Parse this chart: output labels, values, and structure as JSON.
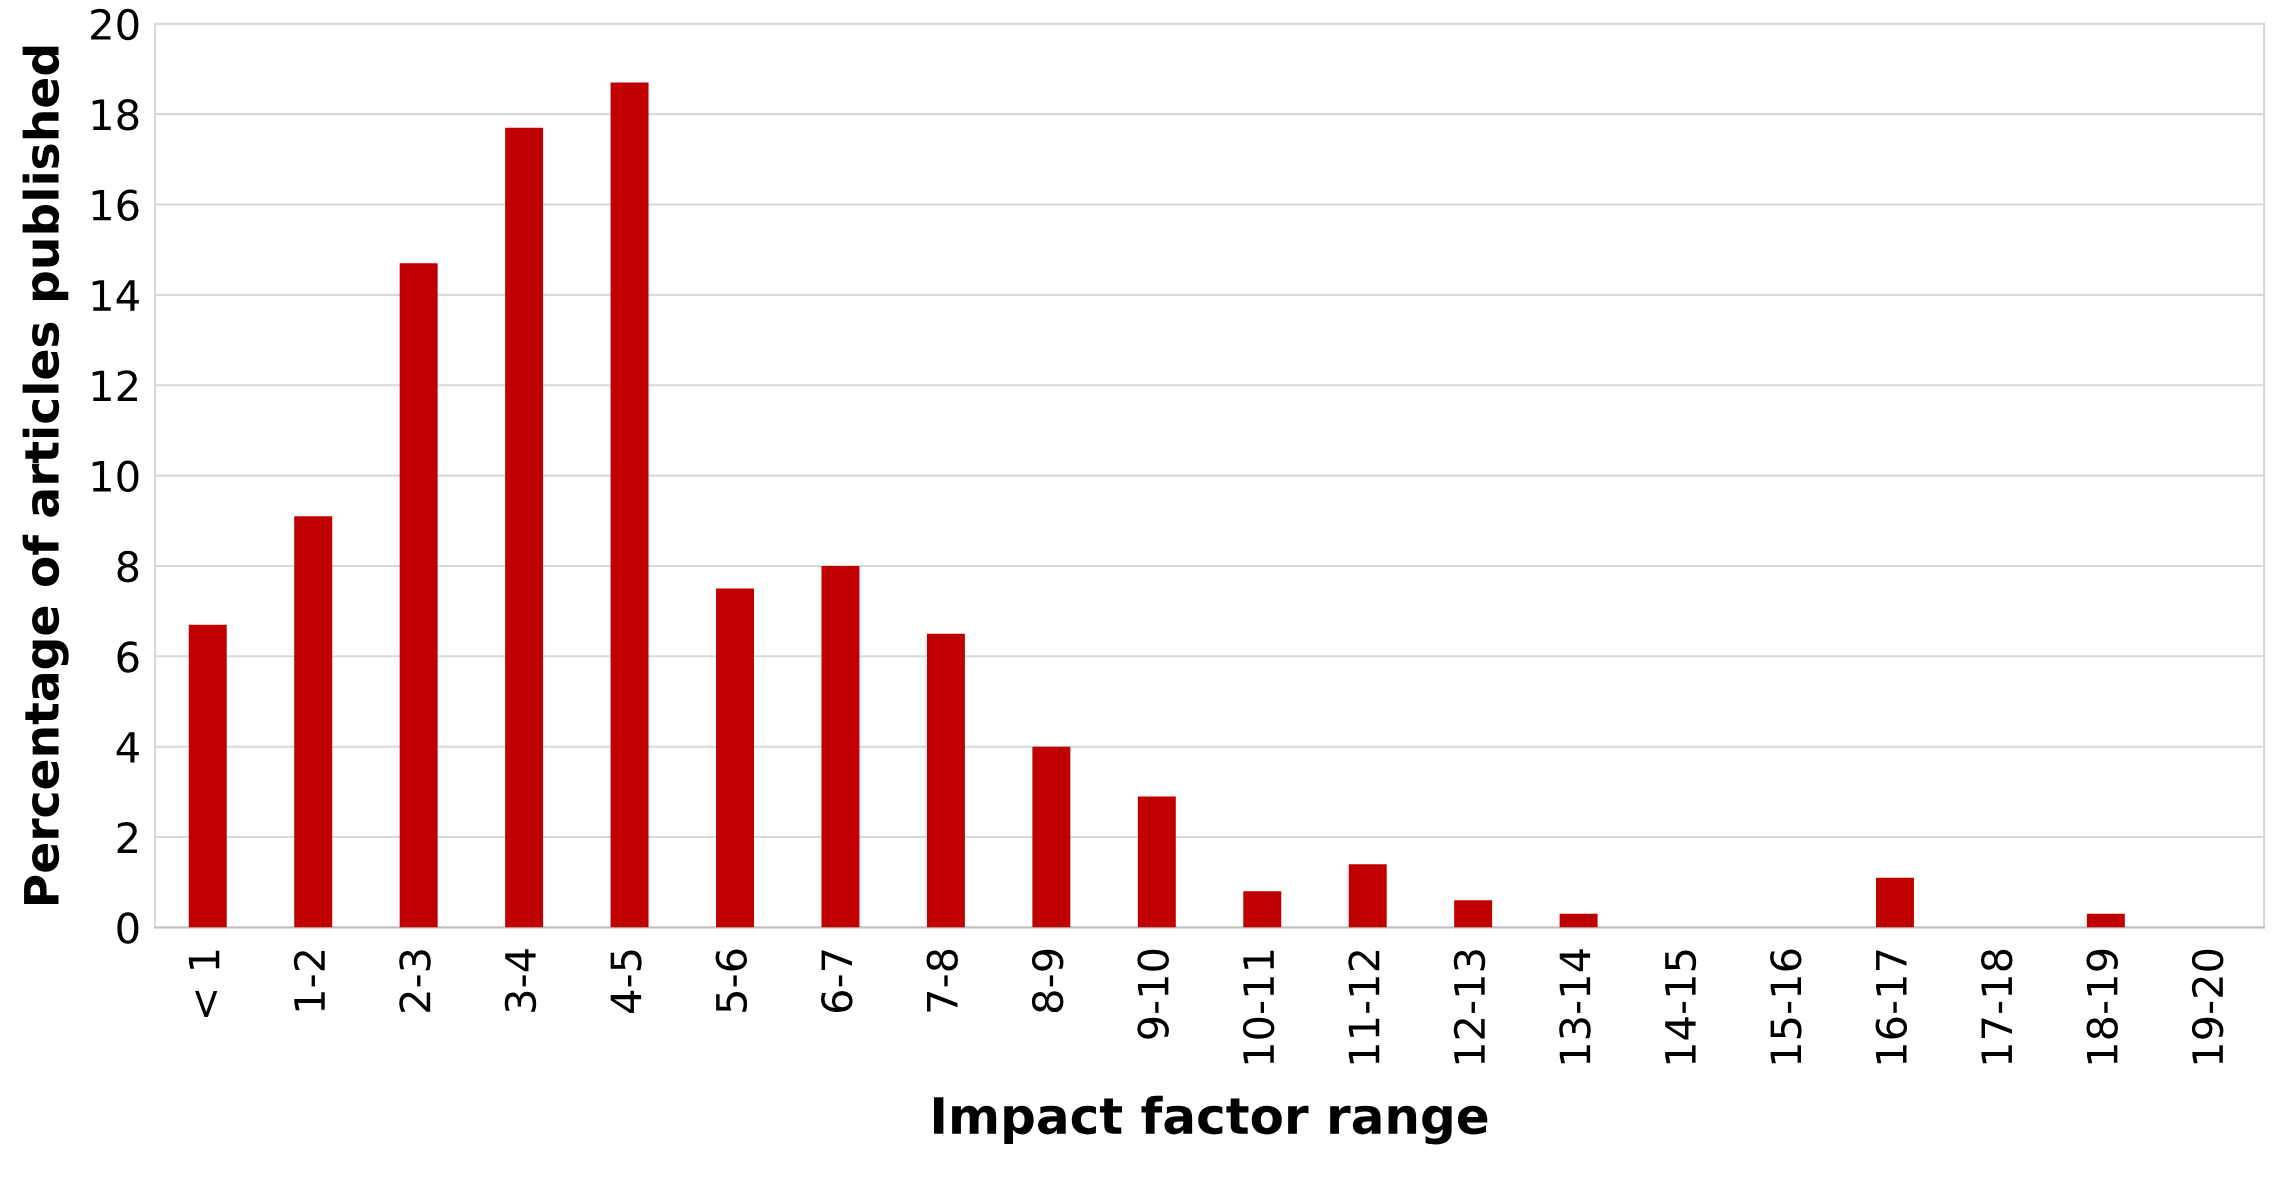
{
  "chart_data": {
    "type": "bar",
    "xlabel": "Impact factor range",
    "ylabel": "Percentage of articles published",
    "categories": [
      "< 1",
      "1-2",
      "2-3",
      "3-4",
      "4-5",
      "5-6",
      "6-7",
      "7-8",
      "8-9",
      "9-10",
      "10-11",
      "11-12",
      "12-13",
      "13-14",
      "14-15",
      "15-16",
      "16-17",
      "17-18",
      "18-19",
      "19-20"
    ],
    "values": [
      6.7,
      9.1,
      14.7,
      17.7,
      18.7,
      7.5,
      8.0,
      6.5,
      4.0,
      2.9,
      0.8,
      1.4,
      0.6,
      0.3,
      0,
      0,
      1.1,
      0,
      0.3,
      0
    ],
    "color": "#c00000",
    "ylim": [
      0,
      20
    ],
    "yticks": [
      0,
      2,
      4,
      6,
      8,
      10,
      12,
      14,
      16,
      18,
      20
    ],
    "grid": "y",
    "legend": false
  }
}
